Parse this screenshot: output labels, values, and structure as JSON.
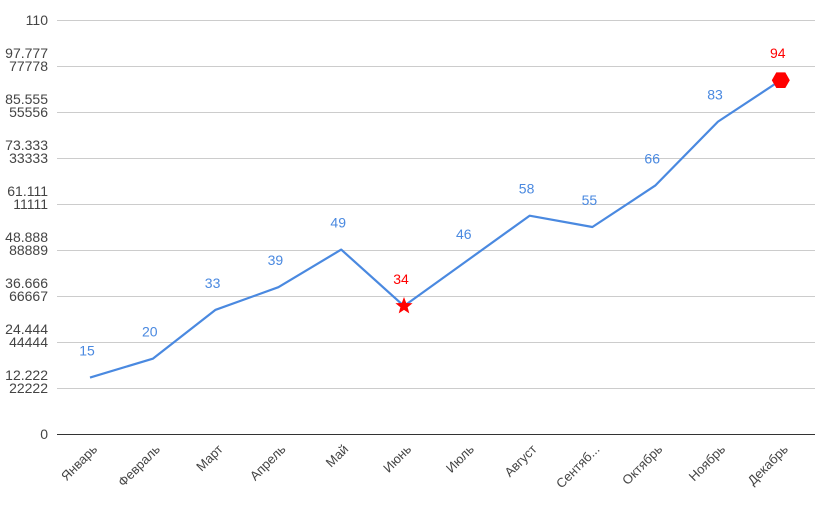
{
  "chart_data": {
    "type": "line",
    "title": "",
    "xlabel": "",
    "ylabel": "",
    "categories": [
      "Январь",
      "Февраль",
      "Март",
      "Апрель",
      "Май",
      "Июнь",
      "Июль",
      "Август",
      "Сентяб...",
      "Октябрь",
      "Ноябрь",
      "Декабрь"
    ],
    "series": [
      {
        "values": [
          15,
          20,
          33,
          39,
          49,
          34,
          46,
          58,
          55,
          66,
          83,
          94
        ],
        "color": "#4a89e0"
      }
    ],
    "highlighted_points": [
      {
        "category": "Июнь",
        "marker": "star",
        "color": "#ff0000"
      },
      {
        "category": "Декабрь",
        "marker": "hexagon",
        "color": "#ff0000"
      }
    ],
    "data_label_color": "#4a89e0",
    "highlight_label_color": "#ff0000",
    "ylim": [
      0,
      110
    ],
    "yticks": [
      {
        "value": 0,
        "label": [
          "0"
        ]
      },
      {
        "value": 12.222,
        "label": [
          "12.222",
          "22222"
        ]
      },
      {
        "value": 24.444,
        "label": [
          "24.444",
          "44444"
        ]
      },
      {
        "value": 36.666,
        "label": [
          "36.666",
          "66667"
        ]
      },
      {
        "value": 48.888,
        "label": [
          "48.888",
          "88889"
        ]
      },
      {
        "value": 61.111,
        "label": [
          "61.111",
          "11111"
        ]
      },
      {
        "value": 73.333,
        "label": [
          "73.333",
          "33333"
        ]
      },
      {
        "value": 85.555,
        "label": [
          "85.555",
          "55556"
        ]
      },
      {
        "value": 97.777,
        "label": [
          "97.777",
          "77778"
        ]
      },
      {
        "value": 110,
        "label": [
          "110"
        ]
      }
    ],
    "grid": true,
    "legend": "none"
  }
}
